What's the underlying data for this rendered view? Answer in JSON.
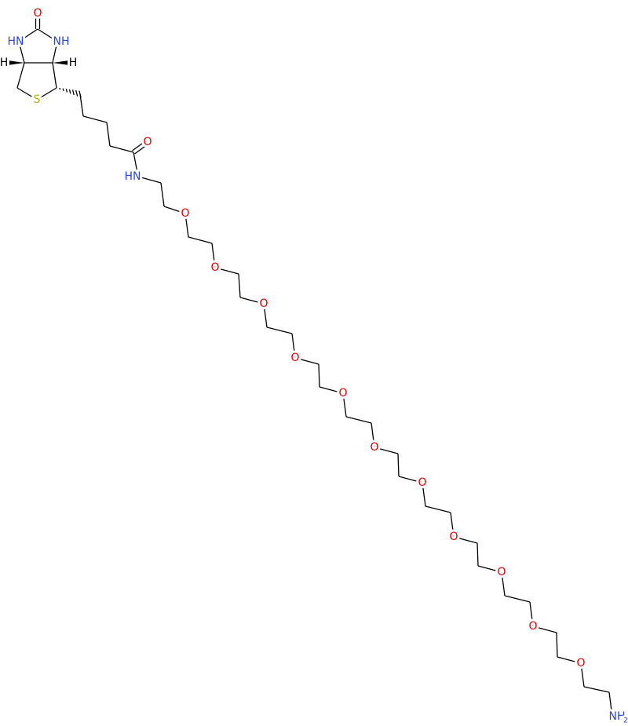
{
  "molecule": {
    "labels": [
      "O",
      "HN",
      "NH",
      "H",
      "H",
      "S",
      "O",
      "HN",
      "O",
      "O",
      "O",
      "O",
      "O",
      "O",
      "O",
      "O",
      "O",
      "O",
      "O"
    ],
    "amine": {
      "text": "NH",
      "subscript": "2"
    }
  }
}
